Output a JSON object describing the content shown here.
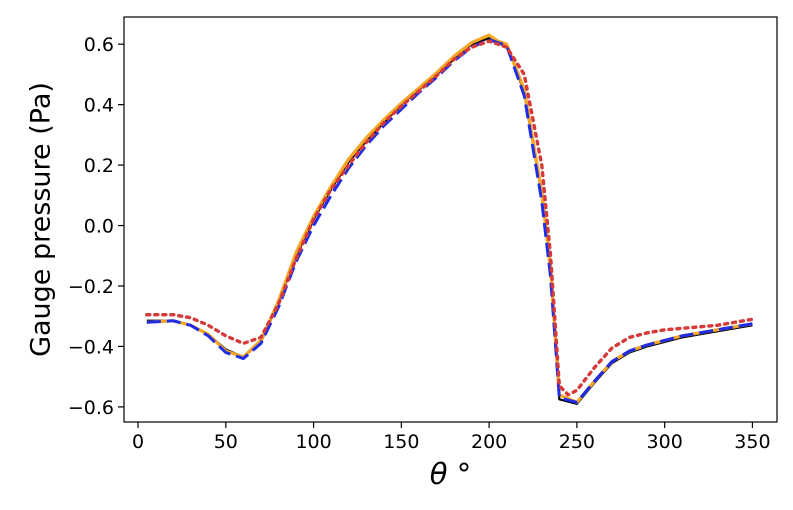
{
  "chart_data": {
    "type": "line",
    "title": "",
    "xlabel": "θ °",
    "ylabel": "Gauge pressure (Pa)",
    "xlim": [
      -8,
      364
    ],
    "ylim": [
      -0.65,
      0.69
    ],
    "xticks": [
      0,
      50,
      100,
      150,
      200,
      250,
      300,
      350
    ],
    "yticks": [
      -0.6,
      -0.4,
      -0.2,
      0.0,
      0.2,
      0.4,
      0.6
    ],
    "ytick_labels": [
      "−0.6",
      "−0.4",
      "−0.2",
      "0.0",
      "0.2",
      "0.4",
      "0.6"
    ],
    "grid": false,
    "legend": "none",
    "series": [
      {
        "color": "#000000",
        "style": "solid",
        "x": [
          5,
          20,
          30,
          40,
          50,
          60,
          70,
          80,
          90,
          100,
          110,
          120,
          130,
          140,
          150,
          160,
          170,
          180,
          190,
          200,
          205,
          210,
          220,
          230,
          235,
          240,
          250,
          260,
          270,
          280,
          290,
          300,
          310,
          320,
          330,
          340,
          350
        ],
        "y": [
          -0.315,
          -0.315,
          -0.33,
          -0.36,
          -0.41,
          -0.435,
          -0.385,
          -0.255,
          -0.1,
          0.02,
          0.12,
          0.21,
          0.28,
          0.34,
          0.4,
          0.45,
          0.5,
          0.55,
          0.6,
          0.62,
          0.61,
          0.6,
          0.44,
          0.1,
          -0.15,
          -0.575,
          -0.59,
          -0.52,
          -0.455,
          -0.42,
          -0.4,
          -0.385,
          -0.37,
          -0.36,
          -0.35,
          -0.34,
          -0.33
        ]
      },
      {
        "color": "#f5a623",
        "style": "solid",
        "x": [
          5,
          20,
          30,
          40,
          50,
          60,
          70,
          80,
          90,
          100,
          110,
          120,
          130,
          140,
          150,
          160,
          170,
          180,
          190,
          200,
          205,
          210,
          220,
          230,
          235,
          240,
          250,
          260,
          270,
          280,
          290,
          300,
          310,
          320,
          330,
          340,
          350
        ],
        "y": [
          -0.32,
          -0.315,
          -0.33,
          -0.36,
          -0.415,
          -0.435,
          -0.38,
          -0.25,
          -0.09,
          0.03,
          0.13,
          0.22,
          0.29,
          0.35,
          0.405,
          0.455,
          0.505,
          0.56,
          0.605,
          0.63,
          0.61,
          0.6,
          0.45,
          0.11,
          -0.14,
          -0.56,
          -0.585,
          -0.515,
          -0.45,
          -0.415,
          -0.395,
          -0.38,
          -0.365,
          -0.355,
          -0.345,
          -0.335,
          -0.325
        ]
      },
      {
        "color": "#1f2de8",
        "style": "dashed",
        "x": [
          5,
          20,
          30,
          40,
          50,
          60,
          70,
          80,
          90,
          100,
          110,
          120,
          130,
          140,
          150,
          160,
          170,
          180,
          190,
          200,
          205,
          210,
          220,
          230,
          235,
          240,
          250,
          260,
          270,
          280,
          290,
          300,
          310,
          320,
          330,
          340,
          350
        ],
        "y": [
          -0.32,
          -0.315,
          -0.33,
          -0.365,
          -0.42,
          -0.44,
          -0.39,
          -0.27,
          -0.12,
          0.0,
          0.1,
          0.19,
          0.265,
          0.33,
          0.385,
          0.44,
          0.49,
          0.545,
          0.59,
          0.615,
          0.605,
          0.595,
          0.43,
          0.08,
          -0.17,
          -0.57,
          -0.585,
          -0.515,
          -0.45,
          -0.415,
          -0.395,
          -0.38,
          -0.365,
          -0.355,
          -0.345,
          -0.335,
          -0.325
        ]
      },
      {
        "color": "#d43a3a",
        "style": "dotted",
        "x": [
          5,
          20,
          30,
          40,
          50,
          60,
          70,
          80,
          90,
          100,
          110,
          120,
          130,
          140,
          150,
          160,
          170,
          180,
          190,
          200,
          205,
          210,
          220,
          230,
          235,
          240,
          245,
          250,
          260,
          270,
          280,
          290,
          300,
          310,
          320,
          330,
          340,
          350
        ],
        "y": [
          -0.295,
          -0.295,
          -0.305,
          -0.33,
          -0.365,
          -0.39,
          -0.37,
          -0.26,
          -0.11,
          0.02,
          0.12,
          0.2,
          0.275,
          0.34,
          0.395,
          0.445,
          0.495,
          0.55,
          0.59,
          0.61,
          0.6,
          0.59,
          0.5,
          0.2,
          -0.1,
          -0.53,
          -0.56,
          -0.545,
          -0.47,
          -0.405,
          -0.37,
          -0.355,
          -0.345,
          -0.34,
          -0.335,
          -0.33,
          -0.32,
          -0.31
        ]
      }
    ]
  }
}
